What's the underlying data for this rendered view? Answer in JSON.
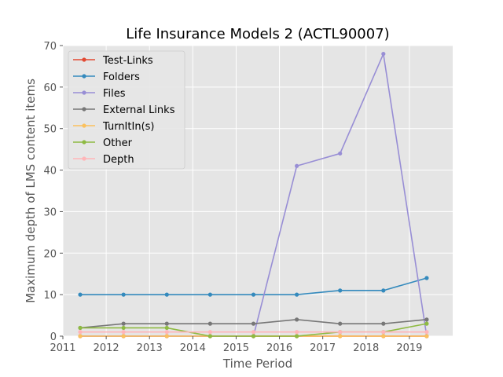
{
  "chart_data": {
    "type": "line",
    "title": "Life Insurance Models 2 (ACTL90007)",
    "xlabel": "Time Period",
    "ylabel": "Maximum depth of LMS content items",
    "xlim": [
      2011,
      2020
    ],
    "ylim": [
      0,
      70
    ],
    "xticks": [
      2011,
      2012,
      2013,
      2014,
      2015,
      2016,
      2017,
      2018,
      2019
    ],
    "yticks": [
      0,
      10,
      20,
      30,
      40,
      50,
      60,
      70
    ],
    "grid": true,
    "legend_position": "top-left",
    "x": [
      2011.4,
      2012.4,
      2013.4,
      2014.4,
      2015.4,
      2016.4,
      2017.4,
      2018.4,
      2019.4
    ],
    "series": [
      {
        "name": "Test-Links",
        "color": "#e24a33",
        "values": [
          0,
          0,
          0,
          0,
          0,
          0,
          0,
          0,
          0
        ]
      },
      {
        "name": "Folders",
        "color": "#348abd",
        "values": [
          10,
          10,
          10,
          10,
          10,
          10,
          11,
          11,
          14
        ]
      },
      {
        "name": "Files",
        "color": "#988ed5",
        "values": [
          0,
          0,
          0,
          0,
          0,
          41,
          44,
          68,
          0
        ]
      },
      {
        "name": "External Links",
        "color": "#777777",
        "values": [
          2,
          3,
          3,
          3,
          3,
          4,
          3,
          3,
          4
        ]
      },
      {
        "name": "TurnItIn(s)",
        "color": "#fbc15e",
        "values": [
          0,
          0,
          0,
          0,
          0,
          0,
          0,
          0,
          0
        ]
      },
      {
        "name": "Other",
        "color": "#8eba42",
        "values": [
          2,
          2,
          2,
          0,
          0,
          0,
          1,
          1,
          3
        ]
      },
      {
        "name": "Depth",
        "color": "#ffb5b8",
        "values": [
          1,
          1,
          1,
          1,
          1,
          1,
          1,
          1,
          1
        ]
      }
    ]
  }
}
